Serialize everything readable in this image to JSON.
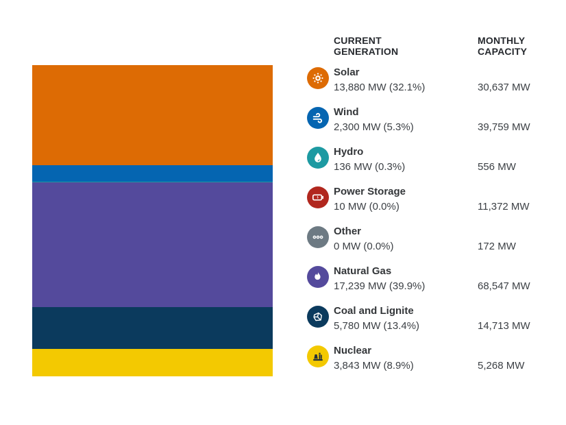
{
  "page": {
    "background": "#ffffff"
  },
  "table": {
    "headers": {
      "current": "CURRENT GENERATION",
      "monthly": "MONTHLY CAPACITY"
    }
  },
  "chart_data": {
    "type": "bar",
    "variant": "single-stacked-vertical-bar",
    "units": "MW",
    "legend_position": "right",
    "grid": false,
    "sources": [
      {
        "id": "solar",
        "name": "Solar",
        "icon": "sun-icon",
        "color": "#DD6B04",
        "glyph_color": "#FFFFFF",
        "current_mw": 13880,
        "current_pct": 32.1,
        "monthly_capacity_mw": 30637,
        "current_label": "13,880 MW (32.1%)",
        "monthly_label": "30,637 MW"
      },
      {
        "id": "wind",
        "name": "Wind",
        "icon": "wind-icon",
        "color": "#0565B1",
        "glyph_color": "#FFFFFF",
        "current_mw": 2300,
        "current_pct": 5.3,
        "monthly_capacity_mw": 39759,
        "current_label": "2,300 MW (5.3%)",
        "monthly_label": "39,759 MW"
      },
      {
        "id": "hydro",
        "name": "Hydro",
        "icon": "water-drop-icon",
        "color": "#1D9AA2",
        "glyph_color": "#FFFFFF",
        "current_mw": 136,
        "current_pct": 0.3,
        "monthly_capacity_mw": 556,
        "current_label": "136 MW (0.3%)",
        "monthly_label": "556 MW"
      },
      {
        "id": "power-storage",
        "name": "Power Storage",
        "icon": "battery-icon",
        "color": "#B1271E",
        "glyph_color": "#FFFFFF",
        "current_mw": 10,
        "current_pct": 0.0,
        "monthly_capacity_mw": 11372,
        "current_label": "10 MW (0.0%)",
        "monthly_label": "11,372 MW"
      },
      {
        "id": "other",
        "name": "Other",
        "icon": "ellipsis-icon",
        "color": "#6D7A83",
        "glyph_color": "#FFFFFF",
        "current_mw": 0,
        "current_pct": 0.0,
        "monthly_capacity_mw": 172,
        "current_label": "0 MW (0.0%)",
        "monthly_label": "172 MW"
      },
      {
        "id": "natural-gas",
        "name": "Natural Gas",
        "icon": "flame-icon",
        "color": "#544A9C",
        "glyph_color": "#FFFFFF",
        "current_mw": 17239,
        "current_pct": 39.9,
        "monthly_capacity_mw": 68547,
        "current_label": "17,239 MW (39.9%)",
        "monthly_label": "68,547 MW"
      },
      {
        "id": "coal-lignite",
        "name": "Coal and Lignite",
        "icon": "coal-icon",
        "color": "#0B3A5D",
        "glyph_color": "#FFFFFF",
        "current_mw": 5780,
        "current_pct": 13.4,
        "monthly_capacity_mw": 14713,
        "current_label": "5,780 MW (13.4%)",
        "monthly_label": "14,713 MW"
      },
      {
        "id": "nuclear",
        "name": "Nuclear",
        "icon": "power-plant-icon",
        "color": "#F3C901",
        "glyph_color": "#243039",
        "current_mw": 3843,
        "current_pct": 8.9,
        "monthly_capacity_mw": 5268,
        "current_label": "3,843 MW (8.9%)",
        "monthly_label": "5,268 MW"
      }
    ]
  }
}
